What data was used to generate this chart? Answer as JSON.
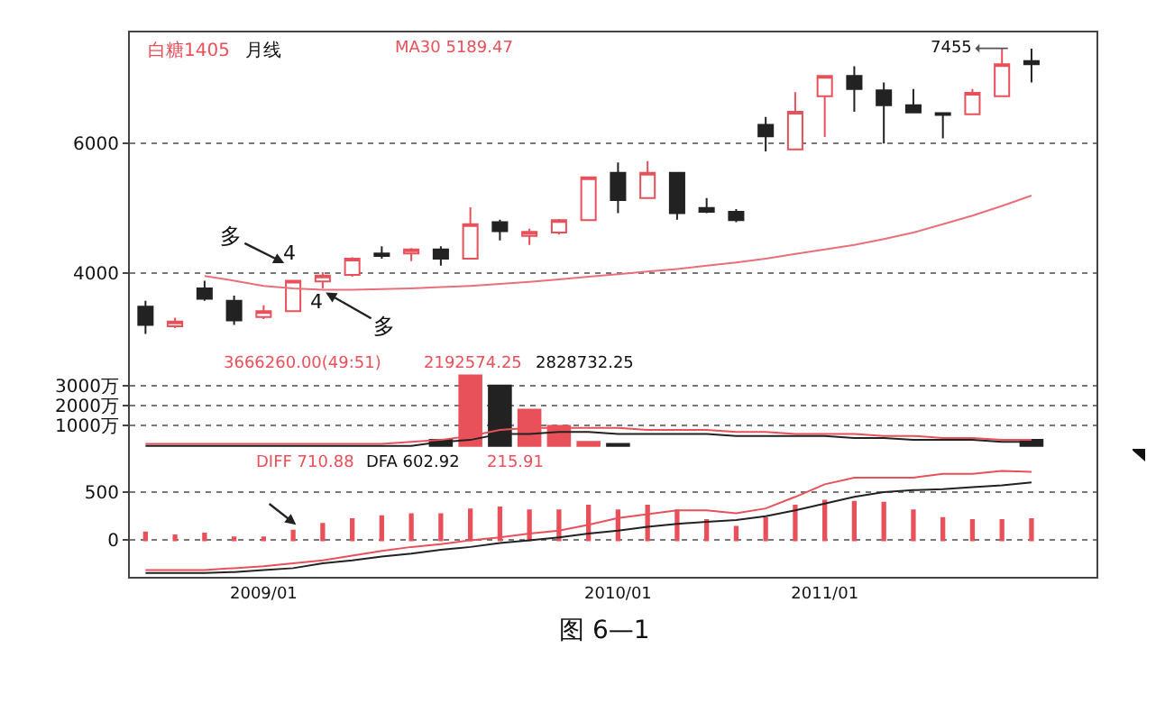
{
  "chart_data": [
    {
      "type": "candlestick",
      "categories": [
        null,
        null,
        null,
        null,
        "2009/01",
        null,
        null,
        null,
        null,
        null,
        null,
        null,
        null,
        null,
        null,
        null,
        "2010/01",
        null,
        null,
        null,
        null,
        null,
        null,
        "2011/01",
        null,
        null,
        null,
        null,
        null,
        null,
        null
      ],
      "ohlc": [
        [
          3480,
          3570,
          3060,
          3200
        ],
        [
          3180,
          3310,
          3150,
          3250
        ],
        [
          3760,
          3880,
          3570,
          3600
        ],
        [
          3570,
          3650,
          3200,
          3270
        ],
        [
          3320,
          3500,
          3290,
          3410
        ],
        [
          3410,
          3880,
          3410,
          3880
        ],
        [
          3870,
          4010,
          3760,
          3960
        ],
        [
          3970,
          4240,
          3940,
          4220
        ],
        [
          4300,
          4410,
          4220,
          4260
        ],
        [
          4300,
          4380,
          4180,
          4360
        ],
        [
          4360,
          4410,
          4110,
          4220
        ],
        [
          4220,
          5010,
          4220,
          4750
        ],
        [
          4780,
          4820,
          4500,
          4640
        ],
        [
          4570,
          4680,
          4430,
          4630
        ],
        [
          4620,
          4830,
          4590,
          4810
        ],
        [
          4810,
          5470,
          4810,
          5470
        ],
        [
          5540,
          5700,
          4920,
          5120
        ],
        [
          5150,
          5720,
          5150,
          5540
        ],
        [
          5540,
          5540,
          4820,
          4920
        ],
        [
          5000,
          5150,
          4920,
          4940
        ],
        [
          4940,
          4980,
          4780,
          4810
        ],
        [
          6280,
          6400,
          5870,
          6100
        ],
        [
          5900,
          6780,
          5900,
          6480
        ],
        [
          6720,
          7030,
          6090,
          7030
        ],
        [
          7030,
          7180,
          6480,
          6830
        ],
        [
          6810,
          6930,
          5990,
          6580
        ],
        [
          6580,
          6830,
          6470,
          6470
        ],
        [
          6460,
          6460,
          6070,
          6430
        ],
        [
          6440,
          6830,
          6440,
          6770
        ],
        [
          6720,
          7455,
          6720,
          7210
        ],
        [
          7260,
          7450,
          6930,
          7210
        ]
      ],
      "colors": [
        "#222222",
        "#e8505a",
        "#222222",
        "#222222",
        "#e8505a",
        "#e8505a",
        "#e8505a",
        "#e8505a",
        "#222222",
        "#e8505a",
        "#222222",
        "#e8505a",
        "#222222",
        "#e8505a",
        "#e8505a",
        "#e8505a",
        "#222222",
        "#e8505a",
        "#222222",
        "#222222",
        "#222222",
        "#222222",
        "#e8505a",
        "#e8505a",
        "#222222",
        "#222222",
        "#222222",
        "#222222",
        "#e8505a",
        "#e8505a",
        "#222222"
      ],
      "series": [
        {
          "type": "line",
          "color": "#e8707a",
          "values": [
            null,
            null,
            3950,
            3880,
            3800,
            3760,
            3740,
            3740,
            3750,
            3760,
            3780,
            3800,
            3830,
            3860,
            3900,
            3940,
            3980,
            4020,
            4060,
            4110,
            4160,
            4220,
            4290,
            4360,
            4430,
            4520,
            4620,
            4750,
            4880,
            5030,
            5190
          ]
        }
      ],
      "ylim": [
        2790,
        7700
      ],
      "yticks": [
        4000,
        6000
      ],
      "grid": "y",
      "tick_labels": "y",
      "annotations": [
        "白糖1405",
        "月线",
        "MA30 5189.47",
        "多",
        "4",
        "4",
        {
          "text": "多",
          "y": 3700
        },
        "7455"
      ]
    },
    {
      "type": "bar",
      "categories": [
        null,
        null,
        null,
        null,
        "2009/01",
        null,
        null,
        null,
        null,
        null,
        null,
        null,
        null,
        null,
        null,
        null,
        "2010/01",
        null,
        null,
        null,
        null,
        null,
        null,
        "2011/01",
        null,
        null,
        null,
        null,
        null,
        null,
        null
      ],
      "series": [
        {
          "type": "bar",
          "colors": [
            "#222222",
            "#e8505a",
            "#222222",
            "#222222",
            "#e8505a",
            "#e8505a",
            "#e8505a",
            "#e8505a",
            "#222222",
            "#e8505a",
            "#222222",
            "#e8505a",
            "#222222",
            "#e8505a",
            "#e8505a",
            "#e8505a",
            "#222222",
            "#e8505a",
            "#222222",
            "#222222",
            "#222222",
            "#222222",
            "#e8505a",
            "#e8505a",
            "#222222",
            "#222222",
            "#222222",
            "#222222",
            "#e8505a",
            "#e8505a",
            "#222222"
          ],
          "values": [
            null,
            null,
            null,
            null,
            null,
            null,
            null,
            null,
            null,
            null,
            300,
            3500,
            3000,
            1800,
            1000,
            200,
            100,
            null,
            null,
            null,
            null,
            null,
            null,
            null,
            null,
            null,
            null,
            null,
            null,
            null,
            300
          ]
        },
        {
          "type": "line",
          "color": "#e8505a",
          "values": [
            100,
            100,
            100,
            100,
            100,
            100,
            100,
            100,
            100,
            200,
            300,
            500,
            800,
            900,
            900,
            900,
            900,
            800,
            800,
            800,
            700,
            700,
            600,
            600,
            600,
            500,
            500,
            400,
            400,
            300,
            300
          ]
        },
        {
          "type": "line",
          "color": "#222222",
          "values": [
            0,
            0,
            0,
            0,
            0,
            0,
            0,
            0,
            0,
            0,
            200,
            300,
            600,
            600,
            700,
            700,
            600,
            600,
            600,
            600,
            500,
            500,
            500,
            500,
            400,
            400,
            300,
            300,
            300,
            200,
            200
          ]
        }
      ],
      "ylim": [
        -230,
        4680
      ],
      "yticks": [
        {
          "value": 1000,
          "label": "1000万"
        },
        {
          "value": 2000,
          "label": "2000万"
        },
        {
          "value": 3000,
          "label": "3000万"
        }
      ],
      "grid": "y",
      "tick_labels": "y",
      "annotations": [
        "3666260.00(49:51)",
        "2192574.25",
        "2828732.25"
      ]
    },
    {
      "type": "bar",
      "categories": [
        null,
        null,
        null,
        null,
        "2009/01",
        null,
        null,
        null,
        null,
        null,
        null,
        null,
        null,
        null,
        null,
        null,
        "2010/01",
        null,
        null,
        null,
        null,
        null,
        null,
        "2011/01",
        null,
        null,
        null,
        null,
        null,
        null,
        null
      ],
      "series": [
        {
          "type": "bar",
          "color": "#e8505a",
          "values": [
            80,
            50,
            70,
            30,
            30,
            100,
            170,
            220,
            250,
            270,
            270,
            320,
            340,
            310,
            310,
            360,
            310,
            360,
            310,
            210,
            140,
            230,
            360,
            410,
            400,
            390,
            310,
            230,
            210,
            210,
            220
          ]
        },
        {
          "type": "line",
          "color": "#e8505a",
          "values": [
            -310,
            -310,
            -310,
            -290,
            -270,
            -240,
            -210,
            -160,
            -110,
            -70,
            -40,
            0,
            30,
            70,
            100,
            160,
            230,
            270,
            310,
            310,
            280,
            330,
            450,
            580,
            650,
            650,
            650,
            690,
            690,
            720,
            710
          ]
        },
        {
          "type": "line",
          "color": "#222222",
          "values": [
            -340,
            -340,
            -340,
            -330,
            -310,
            -290,
            -240,
            -210,
            -170,
            -140,
            -100,
            -70,
            -30,
            0,
            30,
            70,
            100,
            140,
            170,
            190,
            210,
            250,
            310,
            380,
            450,
            500,
            520,
            530,
            550,
            570,
            600
          ]
        }
      ],
      "ylim": [
        -380,
        930
      ],
      "yticks": [
        0,
        500
      ],
      "grid": "y",
      "annotations": [
        "DIFF 710.88",
        "DFA 602.92",
        "215.91",
        "图 6—1"
      ]
    }
  ]
}
